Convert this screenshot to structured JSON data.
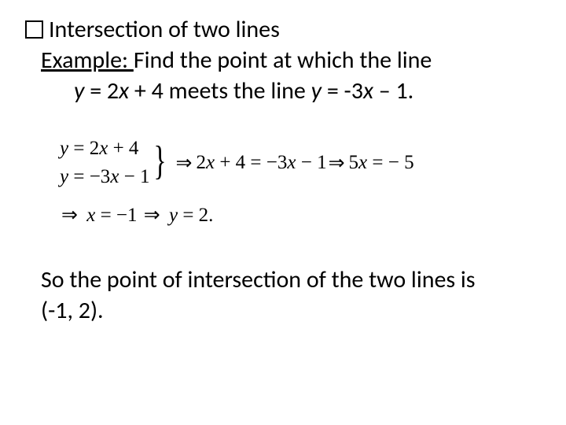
{
  "heading": {
    "title": "Intersection of two lines"
  },
  "example": {
    "label": "Example: ",
    "prompt_part1": " Find the point at which the line",
    "restate_prefix": "y",
    "restate_mid1": " = 2",
    "restate_x1": "x",
    "restate_mid2": " + 4 meets the line ",
    "restate_y2": "y",
    "restate_mid3": " = -3",
    "restate_x2": "x",
    "restate_end": " – 1."
  },
  "derivation": {
    "eq1_y": "y",
    "eq1_rest": " = 2",
    "eq1_x": "x",
    "eq1_tail": " + 4",
    "eq2_y": "y",
    "eq2_rest": " = −3",
    "eq2_x": "x",
    "eq2_tail": " − 1",
    "step1_pre": "2",
    "step1_x1": "x",
    "step1_mid": " + 4 = −3",
    "step1_x2": "x",
    "step1_tail": " − 1",
    "step2_pre": "5",
    "step2_x": "x",
    "step2_tail": " = − 5",
    "step3_x": "x",
    "step3_tail": " = −1",
    "step4_y": "y",
    "step4_tail": " = 2.",
    "arrow": "⇒"
  },
  "conclusion": {
    "text_part1": "So the point of intersection of the two lines is",
    "text_part2": "(-1, 2)."
  },
  "style": {
    "font_body": "Calibri",
    "font_math": "Times New Roman",
    "text_color": "#000000",
    "background": "#ffffff",
    "body_fontsize_pt": 22,
    "math_fontsize_pt": 19
  }
}
